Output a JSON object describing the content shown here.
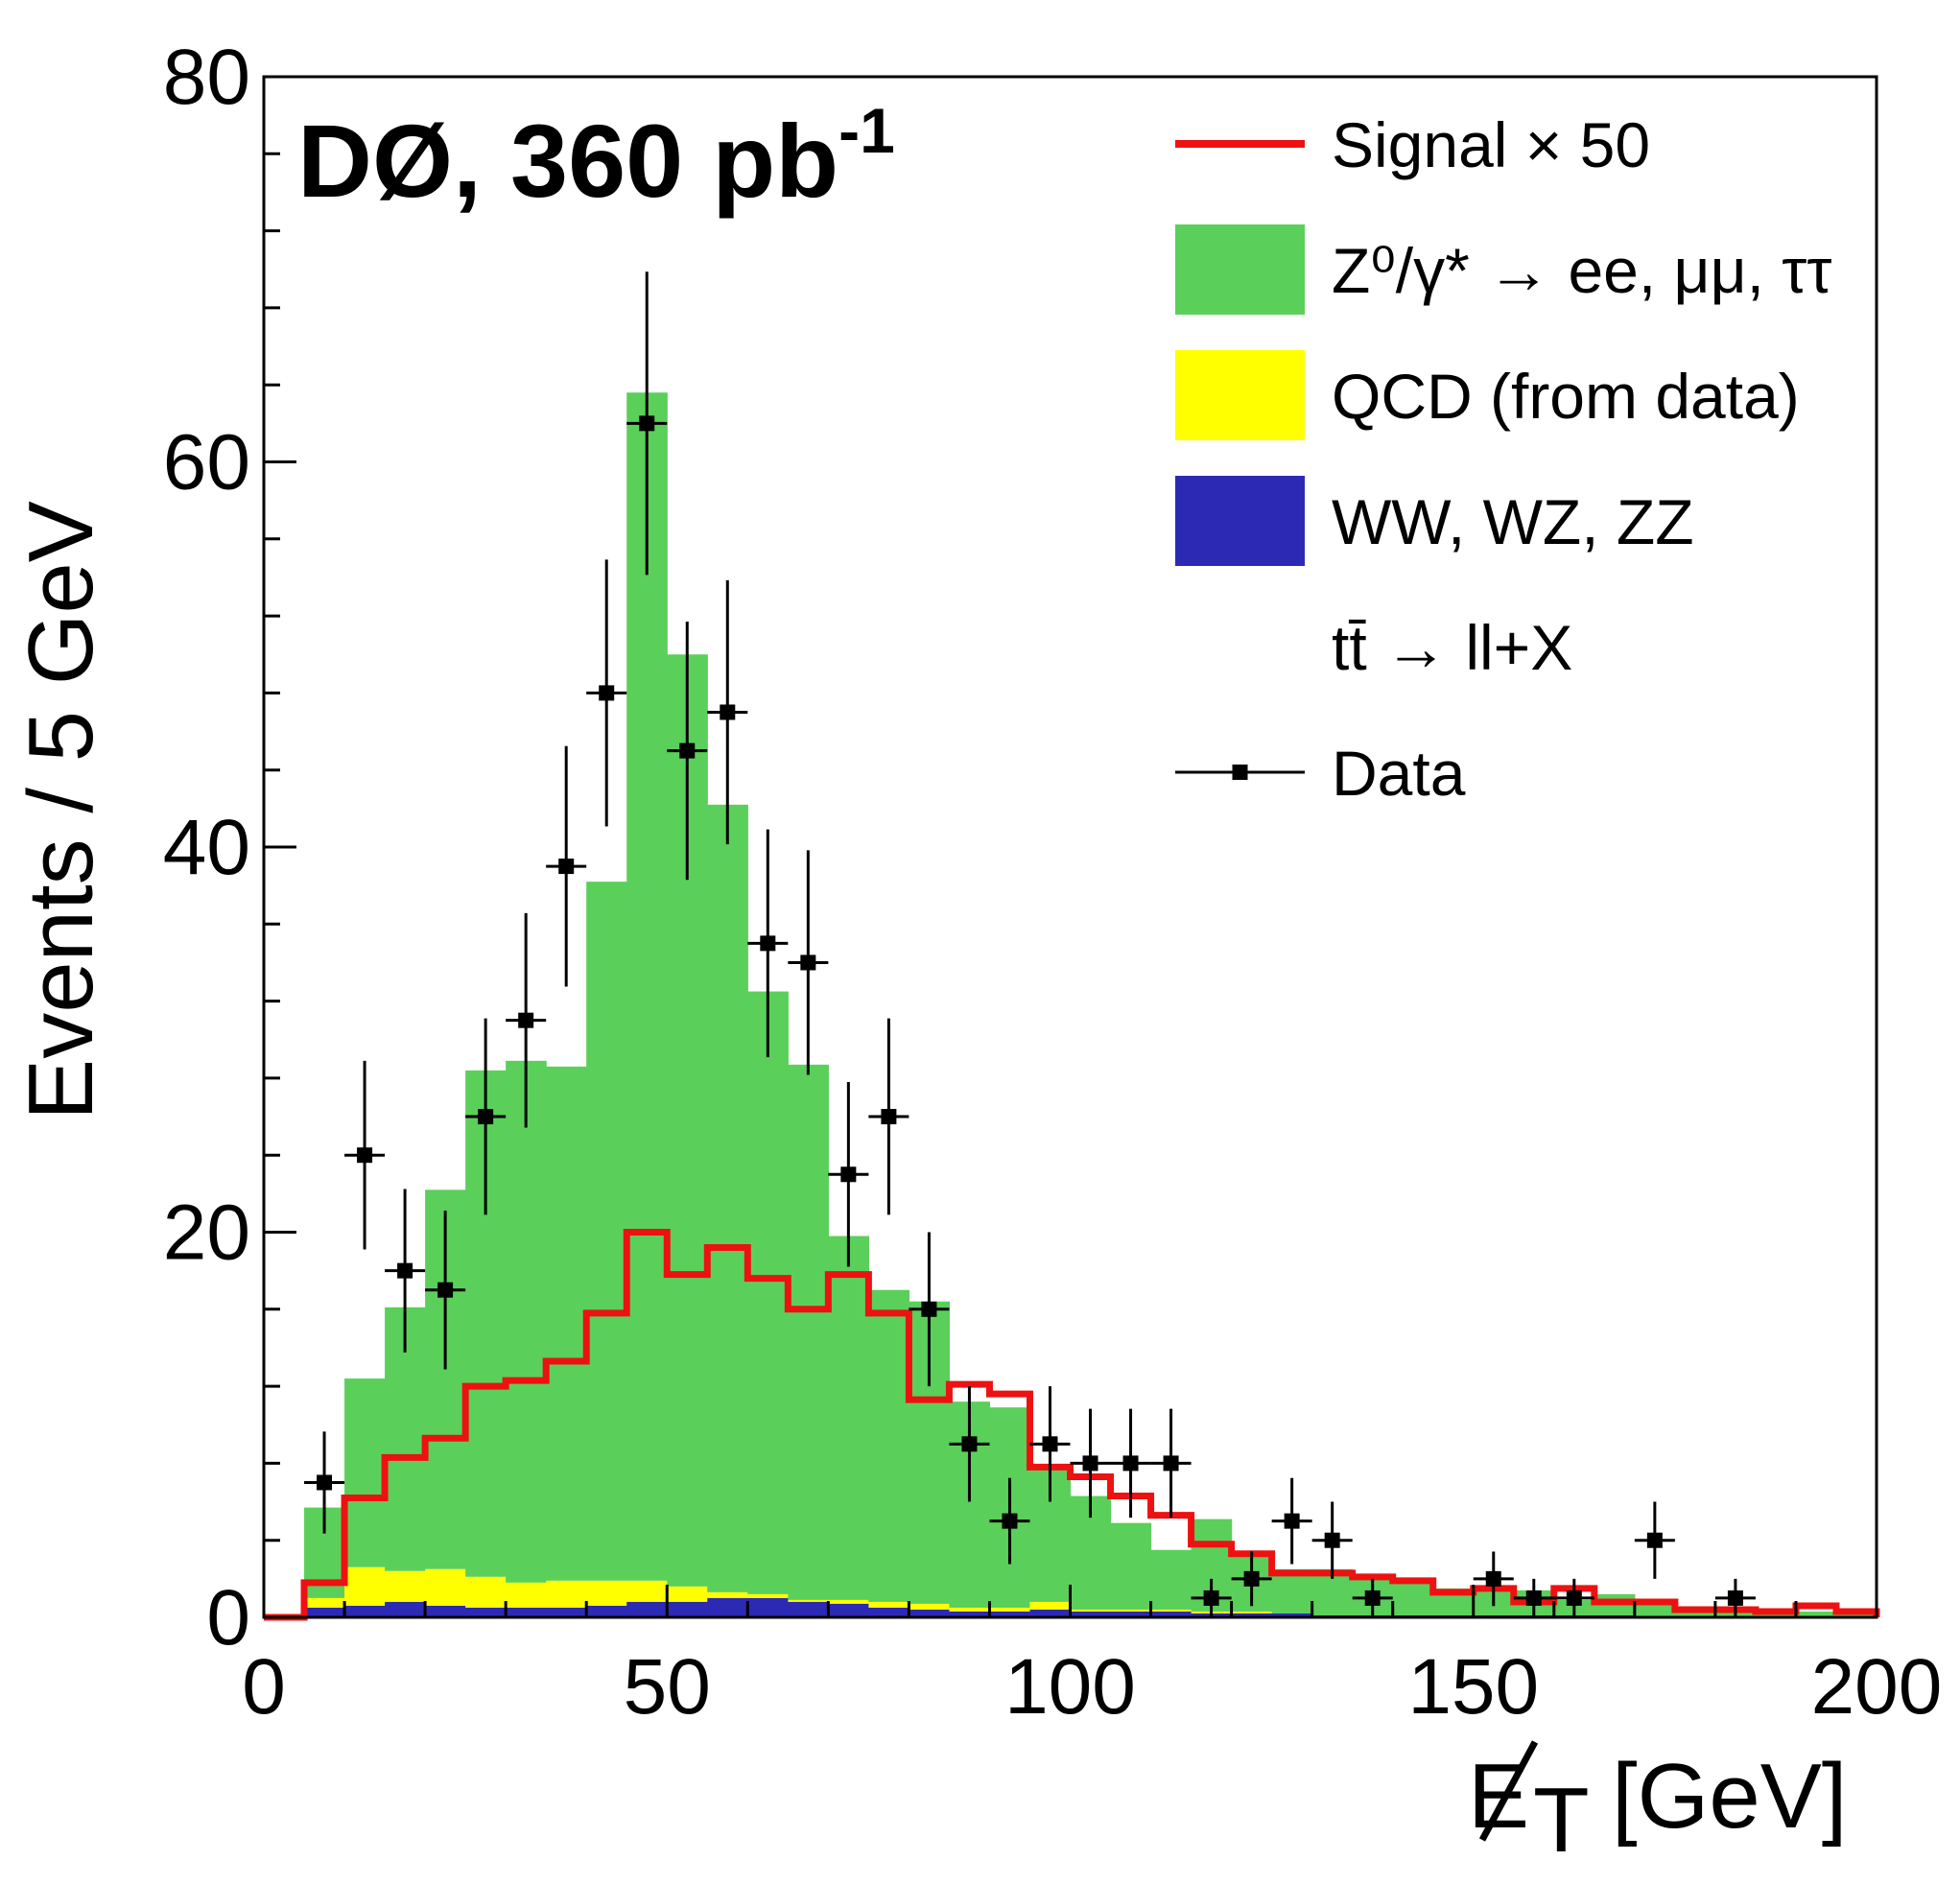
{
  "chart_data": {
    "type": "bar",
    "experiment_label": "DØ, 360 pb",
    "experiment_label_sup": "-1",
    "xlabel": "[GeV]",
    "xlabel_symbol": "E",
    "xlabel_subscript": "T",
    "ylabel": "Events /  5 GeV",
    "xlim": [
      0,
      200
    ],
    "ylim": [
      0,
      80
    ],
    "bin_width": 5,
    "x_ticks": [
      "0",
      "50",
      "100",
      "150",
      "200"
    ],
    "y_ticks": [
      "0",
      "20",
      "40",
      "60",
      "80"
    ],
    "x_tick_values": [
      0,
      50,
      100,
      150,
      200
    ],
    "y_tick_values": [
      0,
      20,
      40,
      60,
      80
    ],
    "stacked_bins": {
      "x_low": [
        5,
        10,
        15,
        20,
        25,
        30,
        35,
        40,
        45,
        50,
        55,
        60,
        65,
        70,
        75,
        80,
        85,
        90,
        95,
        100,
        105,
        110,
        115,
        120,
        125,
        130,
        135,
        140,
        145,
        150,
        155,
        160,
        165,
        170,
        175,
        180,
        185,
        190,
        195
      ],
      "diboson": [
        0.5,
        0.6,
        0.8,
        0.6,
        0.5,
        0.5,
        0.5,
        0.6,
        0.8,
        0.8,
        1.0,
        1.0,
        0.8,
        0.7,
        0.5,
        0.4,
        0.3,
        0.3,
        0.4,
        0.3,
        0.3,
        0.3,
        0.2,
        0.2,
        0.2,
        0.1,
        0.1,
        0.1,
        0.1,
        0.1,
        0.1,
        0.1,
        0.1,
        0.0,
        0.0,
        0.0,
        0.0,
        0.0,
        0.0
      ],
      "qcd": [
        0.5,
        2.0,
        1.6,
        1.9,
        1.6,
        1.3,
        1.4,
        1.3,
        1.1,
        0.8,
        0.3,
        0.2,
        0.1,
        0.2,
        0.3,
        0.3,
        0.2,
        0.2,
        0.4,
        0.1,
        0.1,
        0.1,
        0.1,
        0.1,
        0.0,
        0.0,
        0.0,
        0.0,
        0.0,
        0.0,
        0.0,
        0.0,
        0.0,
        0.0,
        0.0,
        0.0,
        0.0,
        0.0,
        0.0
      ],
      "zgamma": [
        4.7,
        9.8,
        13.7,
        19.7,
        26.3,
        27.1,
        26.7,
        36.3,
        61.7,
        48.4,
        40.9,
        31.3,
        27.8,
        18.9,
        16.2,
        15.7,
        10.7,
        10.4,
        7.1,
        5.9,
        4.5,
        3.1,
        4.8,
        2.9,
        2.3,
        2.4,
        2.0,
        1.8,
        1.4,
        1.3,
        1.3,
        0.8,
        1.1,
        0.7,
        0.5,
        0.4,
        0.3,
        0.3,
        0.2
      ]
    },
    "signal_x50": [
      1.8,
      6.2,
      8.3,
      9.3,
      12.0,
      12.3,
      13.3,
      15.8,
      20.0,
      17.8,
      19.2,
      17.6,
      16.0,
      17.8,
      15.8,
      11.3,
      12.1,
      11.6,
      7.8,
      7.3,
      6.3,
      5.3,
      3.8,
      3.3,
      2.3,
      2.3,
      2.1,
      1.9,
      1.3,
      1.5,
      0.8,
      1.5,
      0.8,
      0.8,
      0.4,
      0.4,
      0.3,
      0.6,
      0.3
    ],
    "data": {
      "x": [
        7.5,
        12.5,
        17.5,
        22.5,
        27.5,
        32.5,
        37.5,
        42.5,
        47.5,
        52.5,
        57.5,
        62.5,
        67.5,
        72.5,
        77.5,
        82.5,
        87.5,
        92.5,
        97.5,
        102.5,
        107.5,
        112.5,
        117.5,
        122.5,
        127.5,
        132.5,
        137.5,
        152.5,
        157.5,
        162.5,
        172.5,
        182.5
      ],
      "y": [
        7,
        24,
        18,
        17,
        26,
        31,
        39,
        48,
        62,
        45,
        47,
        35,
        34,
        23,
        26,
        16,
        9,
        5,
        9,
        8,
        8,
        8,
        1,
        2,
        5,
        4,
        1,
        2,
        1,
        1,
        4,
        1
      ]
    },
    "legend": [
      {
        "label": "Signal × 50",
        "kind": "line",
        "color": "#ee1111"
      },
      {
        "label": "Z⁰/γ* → ee, μμ, ττ",
        "kind": "fill",
        "color": "#5ad05a"
      },
      {
        "label": "QCD (from data)",
        "kind": "fill",
        "color": "#ffff00"
      },
      {
        "label": "WW, WZ, ZZ",
        "kind": "fill",
        "color": "#2c2ab4"
      },
      {
        "label": "tt̄ → ll+X",
        "kind": "none",
        "color": "#ffffff"
      },
      {
        "label": "Data",
        "kind": "marker",
        "color": "#000000"
      }
    ],
    "legend_position": "top-right",
    "grid": false
  }
}
